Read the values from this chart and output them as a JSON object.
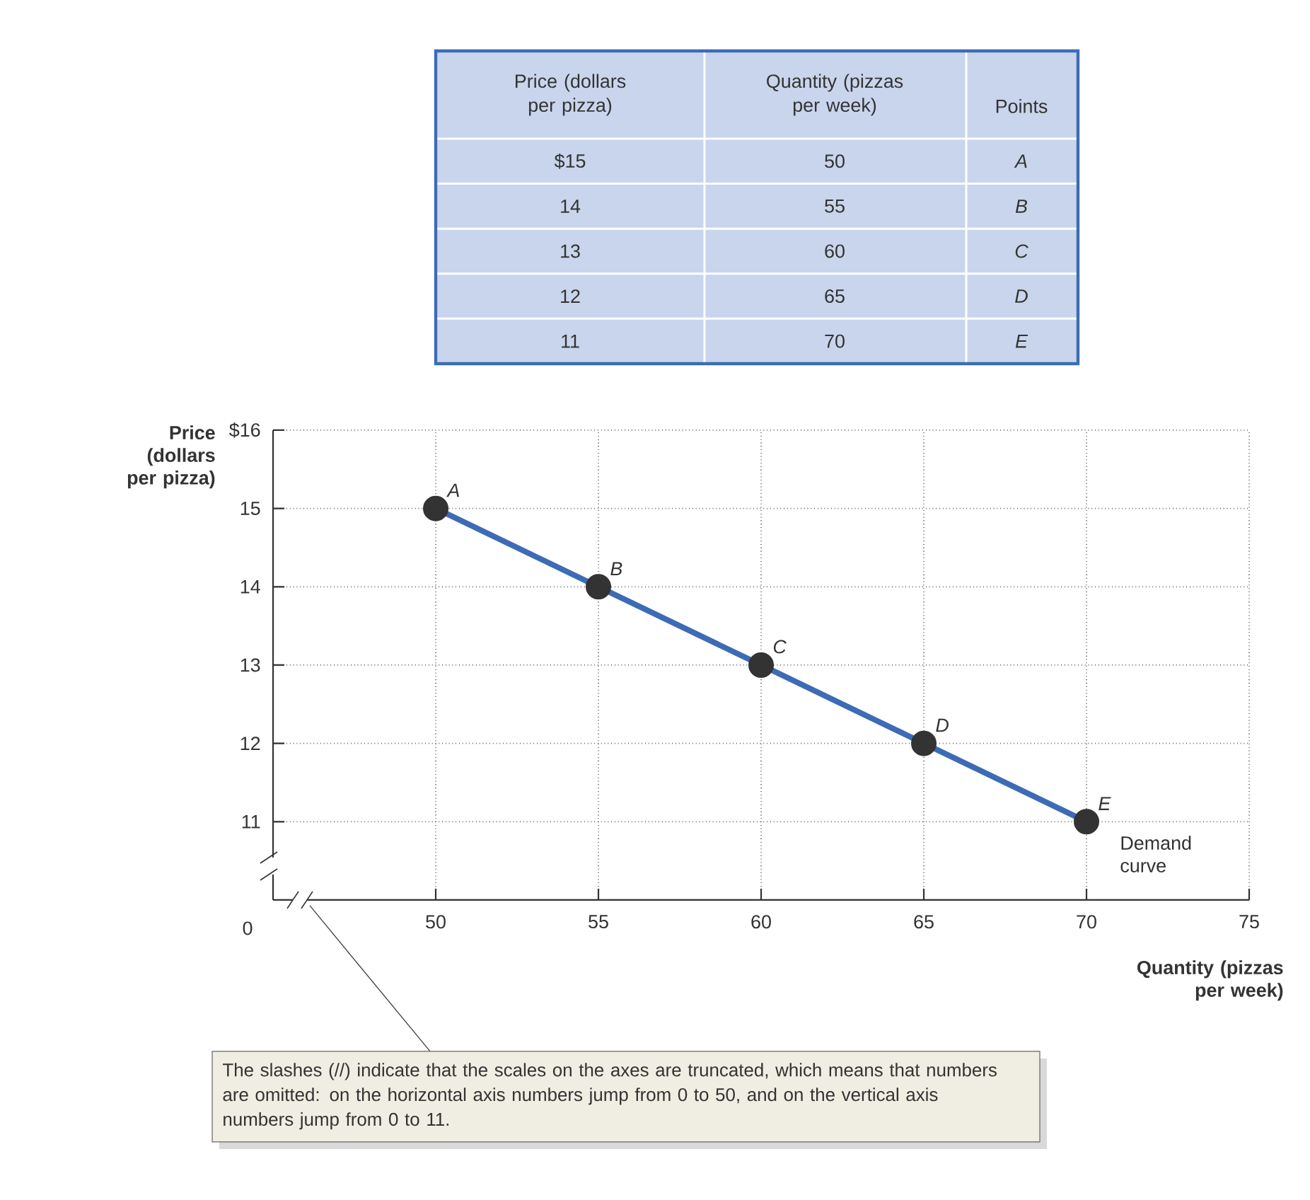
{
  "chart_data": {
    "type": "line",
    "xlabel": "Quantity (pizzas per week)",
    "ylabel": "Price (dollars per pizza)",
    "x": [
      50,
      55,
      60,
      65,
      70
    ],
    "series": [
      {
        "color": "#3d6cb5",
        "values": [
          15,
          14,
          13,
          12,
          11
        ]
      }
    ],
    "xlim": [
      45,
      75
    ],
    "ylim": [
      10,
      16
    ],
    "xticks": [
      50,
      55,
      60,
      65,
      70,
      75
    ],
    "yticks": [
      11,
      12,
      13,
      14,
      15,
      {
        "value": 16,
        "label": "$16"
      }
    ],
    "grid": true,
    "marker": "circle",
    "line_style": "solid",
    "annotations": [
      {
        "text": "A",
        "x": 50,
        "y": 15
      },
      {
        "text": "B",
        "x": 55,
        "y": 14
      },
      {
        "text": "C",
        "x": 60,
        "y": 13
      },
      {
        "text": "D",
        "x": 65,
        "y": 12
      },
      {
        "text": "E",
        "x": 70,
        "y": 11
      },
      "Demand curve",
      "Points",
      "A",
      "B",
      "C",
      "D",
      "E",
      "0",
      "The slashes (//) indicate that the scales on the axes are truncated, which means that numbers are omitted: on the horizontal axis numbers jump from 0 to 50, and on the vertical axis numbers jump from 0 to 11.",
      "$15",
      "14",
      "13",
      "12",
      "11",
      "50",
      "55",
      "60",
      "65",
      "70"
    ]
  }
}
